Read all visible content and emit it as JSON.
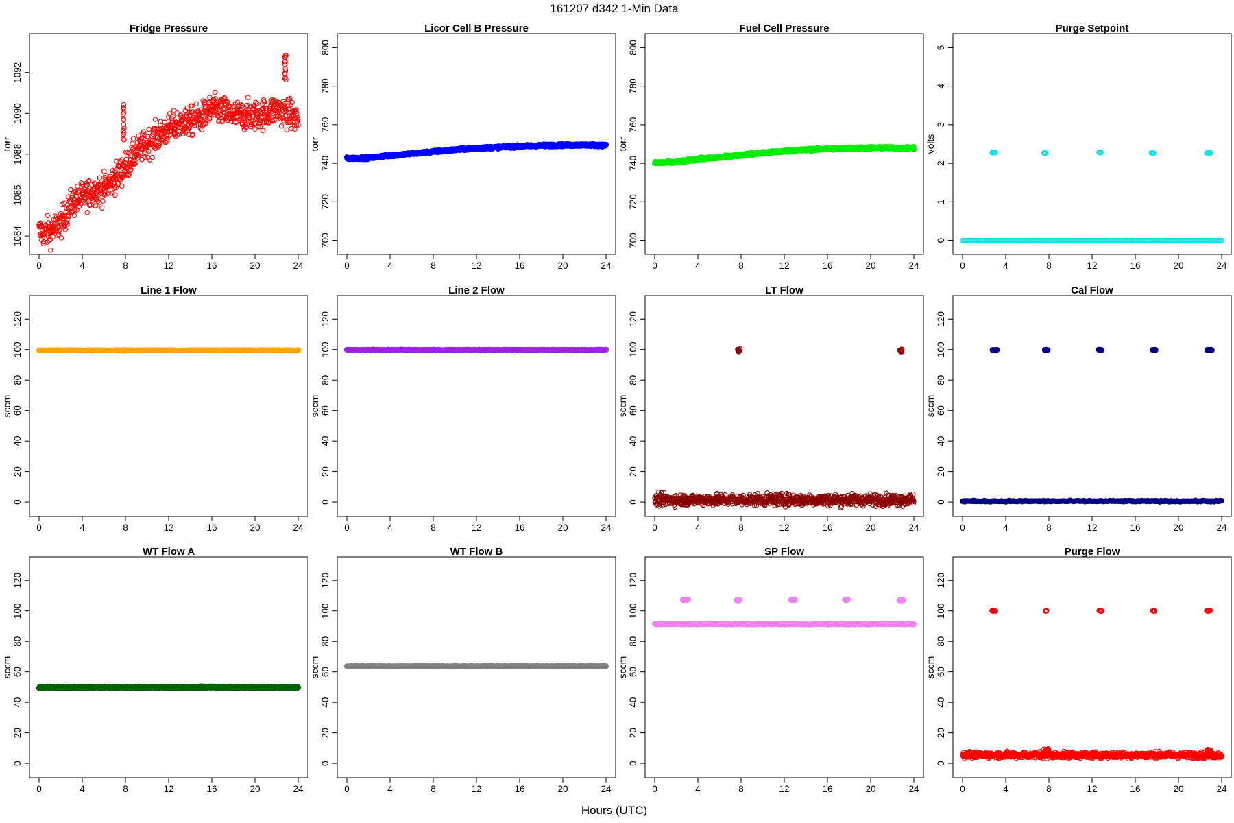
{
  "figure": {
    "title": "161207   d342   1-Min Data",
    "xlabel": "Hours (UTC)"
  },
  "chart_data": [
    {
      "type": "scatter",
      "title": "Fridge Pressure",
      "ylabel": "torr",
      "color": "#ff0000",
      "filled": false,
      "xlim": [
        0,
        24
      ],
      "ylim": [
        1083.5,
        1093.5
      ],
      "xticks": [
        0,
        4,
        8,
        12,
        16,
        20,
        24
      ],
      "yticks": [
        1084,
        1086,
        1088,
        1090,
        1092
      ],
      "pattern": {
        "kind": "trend",
        "noise": 0.35,
        "points": [
          [
            0,
            1084.2
          ],
          [
            1,
            1084.2
          ],
          [
            2,
            1084.6
          ],
          [
            3,
            1085.6
          ],
          [
            4,
            1085.9
          ],
          [
            5,
            1086.2
          ],
          [
            6,
            1086.3
          ],
          [
            7,
            1086.8
          ],
          [
            8,
            1087.4
          ],
          [
            9,
            1088.1
          ],
          [
            10,
            1088.5
          ],
          [
            11,
            1088.9
          ],
          [
            12,
            1089.2
          ],
          [
            13,
            1089.5
          ],
          [
            14,
            1089.6
          ],
          [
            15,
            1089.8
          ],
          [
            16,
            1090.2
          ],
          [
            17,
            1090.1
          ],
          [
            18,
            1089.9
          ],
          [
            19,
            1089.9
          ],
          [
            20,
            1089.9
          ],
          [
            21,
            1090.0
          ],
          [
            22,
            1090.2
          ],
          [
            23,
            1090.0
          ],
          [
            24,
            1089.7
          ]
        ]
      },
      "spikes": [
        {
          "x": 7.8,
          "y": [
            1088.7,
            1090.4
          ]
        },
        {
          "x": 22.8,
          "y": [
            1091.6,
            1092.9
          ]
        }
      ]
    },
    {
      "type": "scatter",
      "title": "Licor Cell B Pressure",
      "ylabel": "torr",
      "color": "#0000ff",
      "filled": true,
      "xlim": [
        0,
        24
      ],
      "ylim": [
        697,
        803
      ],
      "xticks": [
        0,
        4,
        8,
        12,
        16,
        20,
        24
      ],
      "yticks": [
        700,
        720,
        740,
        760,
        780,
        800
      ],
      "pattern": {
        "kind": "trend",
        "noise": 0.3,
        "points": [
          [
            0,
            742.5
          ],
          [
            2,
            742.8
          ],
          [
            4,
            744.0
          ],
          [
            6,
            745.0
          ],
          [
            8,
            746.0
          ],
          [
            10,
            747.0
          ],
          [
            12,
            747.8
          ],
          [
            14,
            748.3
          ],
          [
            16,
            748.8
          ],
          [
            18,
            749.2
          ],
          [
            20,
            749.4
          ],
          [
            22,
            749.5
          ],
          [
            24,
            749.3
          ]
        ]
      }
    },
    {
      "type": "scatter",
      "title": "Fuel Cell Pressure",
      "ylabel": "torr",
      "color": "#00ee00",
      "filled": true,
      "xlim": [
        0,
        24
      ],
      "ylim": [
        697,
        803
      ],
      "xticks": [
        0,
        4,
        8,
        12,
        16,
        20,
        24
      ],
      "yticks": [
        700,
        720,
        740,
        760,
        780,
        800
      ],
      "pattern": {
        "kind": "trend",
        "noise": 0.3,
        "points": [
          [
            0,
            740.2
          ],
          [
            2,
            740.6
          ],
          [
            4,
            742.2
          ],
          [
            6,
            743.0
          ],
          [
            8,
            744.3
          ],
          [
            10,
            745.4
          ],
          [
            12,
            746.3
          ],
          [
            14,
            747.0
          ],
          [
            16,
            747.5
          ],
          [
            18,
            747.8
          ],
          [
            20,
            748.0
          ],
          [
            22,
            748.0
          ],
          [
            24,
            747.8
          ]
        ]
      }
    },
    {
      "type": "scatter",
      "title": "Purge Setpoint",
      "ylabel": "volts",
      "color": "#00e5ee",
      "filled": false,
      "xlim": [
        0,
        24
      ],
      "ylim": [
        -0.15,
        5.15
      ],
      "xticks": [
        0,
        4,
        8,
        12,
        16,
        20,
        24
      ],
      "yticks": [
        0,
        1,
        2,
        3,
        4,
        5
      ],
      "pattern": {
        "kind": "flat",
        "y": 0.0,
        "noise": 0.0
      },
      "clusters": [
        {
          "x": [
            2.7,
            3.1
          ],
          "y": 2.28
        },
        {
          "x": 7.6,
          "y": 2.27
        },
        {
          "x": [
            12.6,
            12.9
          ],
          "y": 2.28
        },
        {
          "x": 17.6,
          "y": 2.27
        },
        {
          "x": [
            22.6,
            23.0
          ],
          "y": 2.27
        }
      ]
    },
    {
      "type": "scatter",
      "title": "Line 1 Flow",
      "ylabel": "sccm",
      "color": "#ffa500",
      "filled": true,
      "xlim": [
        0,
        24
      ],
      "ylim": [
        -4,
        130
      ],
      "xticks": [
        0,
        4,
        8,
        12,
        16,
        20,
        24
      ],
      "yticks": [
        0,
        20,
        40,
        60,
        80,
        100,
        120
      ],
      "pattern": {
        "kind": "flat",
        "y": 99.5,
        "noise": 0.1
      }
    },
    {
      "type": "scatter",
      "title": "Line 2 Flow",
      "ylabel": "sccm",
      "color": "#a020f0",
      "filled": true,
      "xlim": [
        0,
        24
      ],
      "ylim": [
        -4,
        130
      ],
      "xticks": [
        0,
        4,
        8,
        12,
        16,
        20,
        24
      ],
      "yticks": [
        0,
        20,
        40,
        60,
        80,
        100,
        120
      ],
      "pattern": {
        "kind": "flat",
        "y": 99.8,
        "noise": 0.1
      }
    },
    {
      "type": "scatter",
      "title": "LT Flow",
      "ylabel": "sccm",
      "color": "#8b0000",
      "filled": false,
      "xlim": [
        0,
        24
      ],
      "ylim": [
        -4,
        130
      ],
      "xticks": [
        0,
        4,
        8,
        12,
        16,
        20,
        24
      ],
      "yticks": [
        0,
        20,
        40,
        60,
        80,
        100,
        120
      ],
      "pattern": {
        "kind": "band",
        "y": 1.5,
        "noise": 1.8
      },
      "clusters": [
        {
          "x": 7.8,
          "y": 99.5,
          "spread": 2.0
        },
        {
          "x": 22.8,
          "y": 99.5,
          "spread": 2.0
        }
      ]
    },
    {
      "type": "scatter",
      "title": "Cal Flow",
      "ylabel": "sccm",
      "color": "#00008b",
      "filled": true,
      "xlim": [
        0,
        24
      ],
      "ylim": [
        -4,
        130
      ],
      "xticks": [
        0,
        4,
        8,
        12,
        16,
        20,
        24
      ],
      "yticks": [
        0,
        20,
        40,
        60,
        80,
        100,
        120
      ],
      "pattern": {
        "kind": "flat",
        "y": 0.6,
        "noise": 0.2
      },
      "clusters": [
        {
          "x": [
            2.7,
            3.2
          ],
          "y": 99.7
        },
        {
          "x": [
            7.6,
            7.9
          ],
          "y": 99.7
        },
        {
          "x": [
            12.6,
            13.0
          ],
          "y": 99.7
        },
        {
          "x": [
            17.6,
            17.9
          ],
          "y": 99.7
        },
        {
          "x": [
            22.6,
            23.1
          ],
          "y": 99.7
        }
      ]
    },
    {
      "type": "scatter",
      "title": "WT Flow A",
      "ylabel": "sccm",
      "color": "#006400",
      "filled": true,
      "xlim": [
        0,
        24
      ],
      "ylim": [
        -4,
        130
      ],
      "xticks": [
        0,
        4,
        8,
        12,
        16,
        20,
        24
      ],
      "yticks": [
        0,
        20,
        40,
        60,
        80,
        100,
        120
      ],
      "pattern": {
        "kind": "flat",
        "y": 49.8,
        "noise": 0.3
      }
    },
    {
      "type": "scatter",
      "title": "WT Flow B",
      "ylabel": "sccm",
      "color": "#808080",
      "filled": true,
      "xlim": [
        0,
        24
      ],
      "ylim": [
        -4,
        130
      ],
      "xticks": [
        0,
        4,
        8,
        12,
        16,
        20,
        24
      ],
      "yticks": [
        0,
        20,
        40,
        60,
        80,
        100,
        120
      ],
      "pattern": {
        "kind": "flat",
        "y": 63.8,
        "noise": 0.1
      }
    },
    {
      "type": "scatter",
      "title": "SP Flow",
      "ylabel": "sccm",
      "color": "#ee82ee",
      "filled": true,
      "xlim": [
        0,
        24
      ],
      "ylim": [
        -4,
        130
      ],
      "xticks": [
        0,
        4,
        8,
        12,
        16,
        20,
        24
      ],
      "yticks": [
        0,
        20,
        40,
        60,
        80,
        100,
        120
      ],
      "pattern": {
        "kind": "flat",
        "y": 91.3,
        "noise": 0.15
      },
      "clusters": [
        {
          "x": [
            2.6,
            3.1
          ],
          "y": 107.2
        },
        {
          "x": [
            7.6,
            7.9
          ],
          "y": 107.0
        },
        {
          "x": [
            12.6,
            13.0
          ],
          "y": 107.2
        },
        {
          "x": [
            17.6,
            17.9
          ],
          "y": 107.2
        },
        {
          "x": [
            22.6,
            23.1
          ],
          "y": 107.0
        }
      ]
    },
    {
      "type": "scatter",
      "title": "Purge Flow",
      "ylabel": "sccm",
      "color": "#ff0000",
      "filled": false,
      "xlim": [
        0,
        24
      ],
      "ylim": [
        -4,
        130
      ],
      "xticks": [
        0,
        4,
        8,
        12,
        16,
        20,
        24
      ],
      "yticks": [
        0,
        20,
        40,
        60,
        80,
        100,
        120
      ],
      "pattern": {
        "kind": "band",
        "y": 5.5,
        "noise": 1.0
      },
      "clusters": [
        {
          "x": [
            2.7,
            3.1
          ],
          "y": 100.0
        },
        {
          "x": 7.7,
          "y": 100.0
        },
        {
          "x": [
            12.6,
            12.9
          ],
          "y": 100.0
        },
        {
          "x": 17.7,
          "y": 100.0
        },
        {
          "x": [
            22.6,
            23.0
          ],
          "y": 100.0
        },
        {
          "x": [
            7.5,
            8.0
          ],
          "y": 9.0,
          "spread": 1.5
        },
        {
          "x": [
            22.6,
            23.0
          ],
          "y": 8.5,
          "spread": 1.5
        }
      ]
    }
  ]
}
